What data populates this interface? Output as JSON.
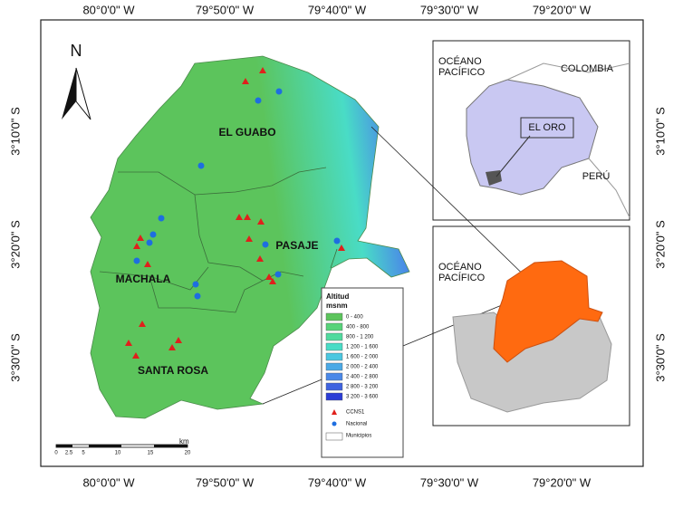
{
  "grid_labels": {
    "top": [
      "80°0'0\" W",
      "79°50'0\" W",
      "79°40'0\" W",
      "79°30'0\" W",
      "79°20'0\" W"
    ],
    "bottom": [
      "80°0'0\" W",
      "79°50'0\" W",
      "79°40'0\" W",
      "79°30'0\" W",
      "79°20'0\" W"
    ],
    "left": [
      "3°10'0\" S",
      "3°20'0\" S",
      "3°30'0\" S"
    ],
    "right": [
      "3°10'0\" S",
      "3°20'0\" S",
      "3°30'0\" S"
    ]
  },
  "north": "N",
  "regions": [
    "EL GUABO",
    "PASAJE",
    "MACHALA",
    "SANTA ROSA"
  ],
  "legend": {
    "title": "Altitud msnm",
    "altitude_classes": [
      {
        "label": "0 - 400",
        "color": "#5cc45c"
      },
      {
        "label": "400 - 800",
        "color": "#57d37a"
      },
      {
        "label": "800 - 1 200",
        "color": "#50da9e"
      },
      {
        "label": "1 200 - 1 600",
        "color": "#49dcc6"
      },
      {
        "label": "1 600 - 2 000",
        "color": "#4ac7e0"
      },
      {
        "label": "2 000 - 2 400",
        "color": "#4aa9e6"
      },
      {
        "label": "2 400 - 2 800",
        "color": "#4a88e8"
      },
      {
        "label": "2 800 - 3 200",
        "color": "#3f63e0"
      },
      {
        "label": "3 200 - 3 600",
        "color": "#2b3dd6"
      }
    ],
    "symbols": [
      "CCNS1",
      "Nacional",
      "Municipios"
    ]
  },
  "scale_bar": {
    "ticks": [
      "0",
      "2.5",
      "5",
      "10",
      "15",
      "20"
    ],
    "unit": "km"
  },
  "inset_ecuador": {
    "ocean": "OCÉANO PACÍFICO",
    "north_country": "COLOMBIA",
    "province": "EL ORO",
    "south_country": "PERÚ"
  },
  "inset_el_oro": {
    "ocean": "OCÉANO PACÍFICO"
  }
}
